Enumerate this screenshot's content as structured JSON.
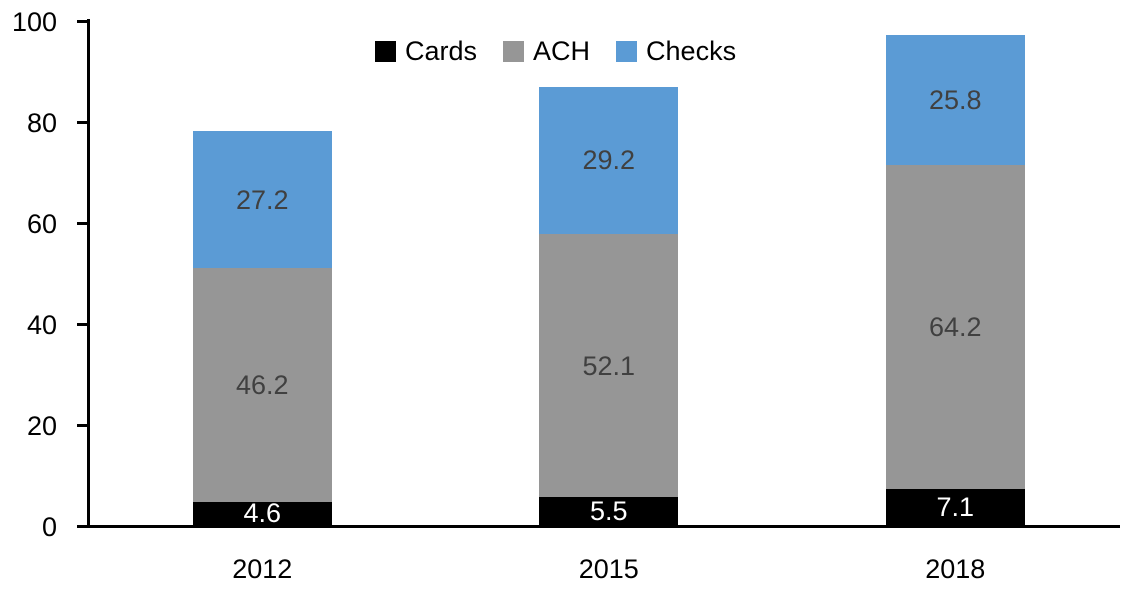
{
  "chart_data": {
    "type": "bar",
    "stacked": true,
    "title": "",
    "xlabel": "",
    "ylabel": "",
    "categories": [
      "2012",
      "2015",
      "2018"
    ],
    "series": [
      {
        "name": "Cards",
        "color": "#000000",
        "label_color": "#ffffff",
        "values": [
          4.6,
          5.5,
          7.1
        ]
      },
      {
        "name": "ACH",
        "color": "#969696",
        "label_color": "#404040",
        "values": [
          46.2,
          52.1,
          64.2
        ]
      },
      {
        "name": "Checks",
        "color": "#5B9BD5",
        "label_color": "#404040",
        "values": [
          27.2,
          29.2,
          25.8
        ]
      }
    ],
    "totals": [
      78.0,
      86.8,
      97.1
    ],
    "ylim": [
      0,
      100
    ],
    "yticks": [
      0,
      20,
      40,
      60,
      80,
      100
    ],
    "grid": false,
    "legend_position": "top",
    "axis_color": "#000000"
  }
}
